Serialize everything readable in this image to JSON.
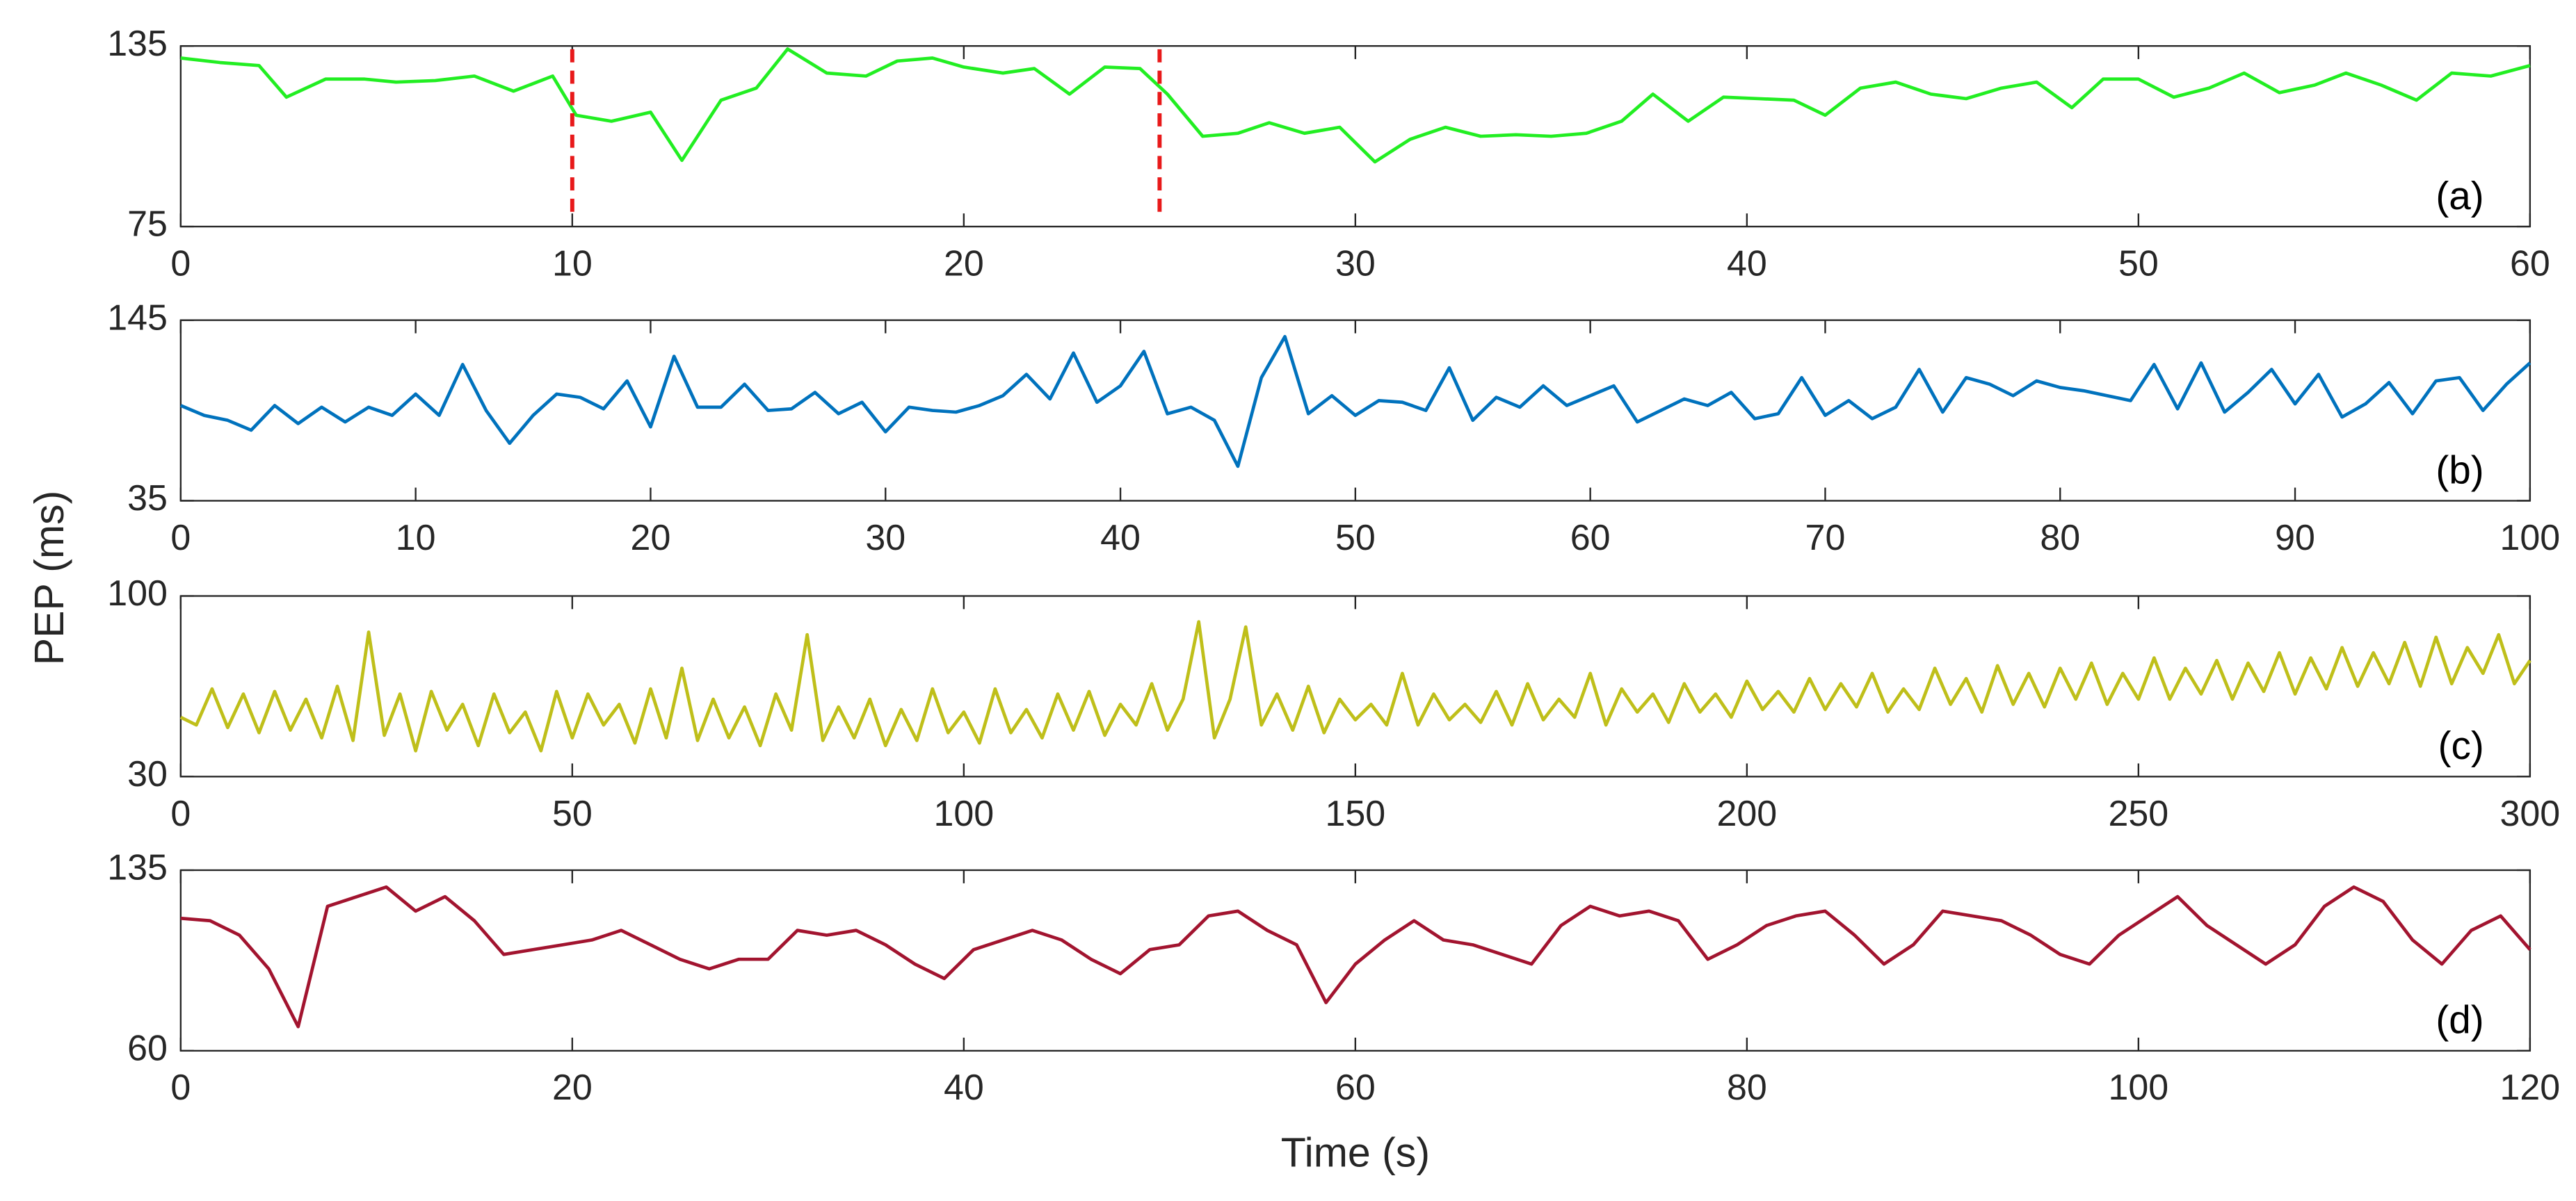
{
  "ylabel": "PEP (ms)",
  "chart_data": [
    {
      "type": "line",
      "annotation": "(a)",
      "color": "#22ee22",
      "vlines": [
        10,
        25
      ],
      "vline_color": "#e8191a",
      "xlim": [
        0,
        60
      ],
      "xticks": [
        0,
        10,
        20,
        30,
        40,
        50,
        60
      ],
      "ylim": [
        75,
        135
      ],
      "yticks": [
        75,
        135
      ],
      "x": [
        0,
        1,
        2,
        2.7,
        3.7,
        4.7,
        5.5,
        6.5,
        7.5,
        8.5,
        9.5,
        10.1,
        11,
        12,
        12.8,
        13.8,
        14.7,
        15.5,
        16.5,
        17.5,
        18.3,
        19.2,
        20,
        21,
        21.8,
        22.7,
        23.6,
        24.5,
        25.2,
        26.1,
        27,
        27.8,
        28.7,
        29.6,
        30.5,
        31.4,
        32.3,
        33.2,
        34.1,
        35,
        35.9,
        36.8,
        37.6,
        38.5,
        39.4,
        40.3,
        41.2,
        42,
        42.9,
        43.8,
        44.7,
        45.6,
        46.5,
        47.4,
        48.3,
        49.1,
        50,
        50.9,
        51.8,
        52.7,
        53.6,
        54.5,
        55.3,
        56.2,
        57.1,
        58,
        59,
        60
      ],
      "values": [
        131,
        129.5,
        128.5,
        118,
        124,
        124,
        123,
        123.5,
        125,
        120,
        125,
        112,
        110,
        113,
        97,
        117,
        121,
        134,
        126,
        125,
        130,
        131,
        128,
        126,
        127.5,
        119,
        128,
        127.5,
        119,
        105,
        106,
        109.5,
        106,
        108,
        96.5,
        104,
        108,
        105,
        105.5,
        105,
        106,
        110,
        119,
        110,
        118,
        117.5,
        117,
        112,
        121,
        123,
        119,
        117.5,
        121,
        123,
        114.5,
        124,
        124,
        118,
        121,
        126,
        119.5,
        122,
        126,
        122,
        117,
        126,
        125,
        128.5
      ]
    },
    {
      "type": "line",
      "annotation": "(b)",
      "color": "#0072bd",
      "xlim": [
        0,
        100
      ],
      "xticks": [
        0,
        10,
        20,
        30,
        40,
        50,
        60,
        70,
        80,
        90,
        100
      ],
      "ylim": [
        35,
        145
      ],
      "yticks": [
        35,
        145
      ],
      "x": [
        0,
        1,
        2,
        3,
        4,
        5,
        6,
        7,
        8,
        9,
        10,
        11,
        12,
        13,
        14,
        15,
        16,
        17,
        18,
        19,
        20,
        21,
        22,
        23,
        24,
        25,
        26,
        27,
        28,
        29,
        30,
        31,
        32,
        33,
        34,
        35,
        36,
        37,
        38,
        39,
        40,
        41,
        42,
        43,
        44,
        45,
        46,
        47,
        48,
        49,
        50,
        51,
        52,
        53,
        54,
        55,
        56,
        57,
        58,
        59,
        60,
        61,
        62,
        63,
        64,
        65,
        66,
        67,
        68,
        69,
        70,
        71,
        72,
        73,
        74,
        75,
        76,
        77,
        78,
        79,
        80,
        81,
        82,
        83,
        84,
        85,
        86,
        87,
        88,
        89,
        90,
        91,
        92,
        93,
        94,
        95,
        96,
        97,
        98,
        99,
        100
      ],
      "values": [
        93,
        87,
        84,
        78,
        93,
        82,
        92,
        83,
        92,
        87,
        100,
        87,
        118,
        90,
        70,
        87,
        100,
        98,
        91,
        108,
        80,
        123,
        92,
        92,
        106,
        90,
        91,
        101,
        88,
        95,
        77,
        92,
        90,
        89,
        93,
        99,
        112,
        97,
        125,
        95,
        105,
        126,
        88,
        92,
        84,
        56,
        110,
        135,
        88,
        99,
        87,
        96,
        95,
        90,
        116,
        84,
        98,
        92,
        105,
        93,
        99,
        105,
        83,
        90,
        97,
        93,
        101,
        85,
        88,
        110,
        87,
        96,
        85,
        92,
        115,
        89,
        110,
        106,
        99,
        108,
        104,
        102,
        99,
        96,
        118,
        91,
        119,
        89,
        101,
        115,
        94,
        112,
        86,
        94,
        107,
        88,
        108,
        110,
        90,
        106,
        119
      ]
    },
    {
      "type": "line",
      "annotation": "(c)",
      "color": "#bfbf1a",
      "xlim": [
        0,
        300
      ],
      "xticks": [
        0,
        50,
        100,
        150,
        200,
        250,
        300
      ],
      "ylim": [
        30,
        100
      ],
      "yticks": [
        30,
        100
      ],
      "x": [
        0,
        2,
        4,
        6,
        8,
        10,
        12,
        14,
        16,
        18,
        20,
        22,
        24,
        26,
        28,
        30,
        32,
        34,
        36,
        38,
        40,
        42,
        44,
        46,
        48,
        50,
        52,
        54,
        56,
        58,
        60,
        62,
        64,
        66,
        68,
        70,
        72,
        74,
        76,
        78,
        80,
        82,
        84,
        86,
        88,
        90,
        92,
        94,
        96,
        98,
        100,
        102,
        104,
        106,
        108,
        110,
        112,
        114,
        116,
        118,
        120,
        122,
        124,
        126,
        128,
        130,
        132,
        134,
        136,
        138,
        140,
        142,
        144,
        146,
        148,
        150,
        152,
        154,
        156,
        158,
        160,
        162,
        164,
        166,
        168,
        170,
        172,
        174,
        176,
        178,
        180,
        182,
        184,
        186,
        188,
        190,
        192,
        194,
        196,
        198,
        200,
        202,
        204,
        206,
        208,
        210,
        212,
        214,
        216,
        218,
        220,
        222,
        224,
        226,
        228,
        230,
        232,
        234,
        236,
        238,
        240,
        242,
        244,
        246,
        248,
        250,
        252,
        254,
        256,
        258,
        260,
        262,
        264,
        266,
        268,
        270,
        272,
        274,
        276,
        278,
        280,
        282,
        284,
        286,
        288,
        290,
        292,
        294,
        296,
        298,
        300
      ],
      "values": [
        53,
        50,
        64,
        49,
        62,
        47,
        63,
        48,
        60,
        45,
        65,
        44,
        86,
        46,
        62,
        40,
        63,
        48,
        58,
        42,
        62,
        47,
        55,
        40,
        63,
        45,
        62,
        50,
        58,
        43,
        64,
        45,
        72,
        44,
        60,
        45,
        57,
        42,
        62,
        48,
        85,
        44,
        57,
        45,
        60,
        42,
        56,
        44,
        64,
        47,
        55,
        43,
        64,
        47,
        56,
        45,
        62,
        48,
        63,
        46,
        58,
        50,
        66,
        48,
        60,
        90,
        45,
        60,
        88,
        50,
        62,
        48,
        65,
        47,
        60,
        52,
        58,
        50,
        70,
        50,
        62,
        52,
        58,
        51,
        63,
        50,
        66,
        52,
        60,
        53,
        70,
        50,
        64,
        55,
        62,
        51,
        66,
        55,
        62,
        53,
        67,
        56,
        63,
        55,
        68,
        56,
        66,
        57,
        70,
        55,
        64,
        56,
        72,
        58,
        68,
        55,
        73,
        58,
        70,
        57,
        72,
        60,
        74,
        58,
        70,
        60,
        76,
        60,
        72,
        62,
        75,
        60,
        74,
        63,
        78,
        62,
        76,
        64,
        80,
        65,
        78,
        66,
        82,
        65,
        84,
        66,
        80,
        70,
        85,
        66,
        75
      ]
    },
    {
      "type": "line",
      "annotation": "(d)",
      "color": "#a2142f",
      "xlabel": "Time (s)",
      "xlim": [
        0,
        120
      ],
      "xticks": [
        0,
        20,
        40,
        60,
        80,
        100,
        120
      ],
      "ylim": [
        60,
        135
      ],
      "yticks": [
        60,
        135
      ],
      "x": [
        0,
        1.5,
        3,
        4.5,
        6,
        7.5,
        9,
        10.5,
        12,
        13.5,
        15,
        16.5,
        18,
        19.5,
        21,
        22.5,
        24,
        25.5,
        27,
        28.5,
        30,
        31.5,
        33,
        34.5,
        36,
        37.5,
        39,
        40.5,
        42,
        43.5,
        45,
        46.5,
        48,
        49.5,
        51,
        52.5,
        54,
        55.5,
        57,
        58.5,
        60,
        61.5,
        63,
        64.5,
        66,
        67.5,
        69,
        70.5,
        72,
        73.5,
        75,
        76.5,
        78,
        79.5,
        81,
        82.5,
        84,
        85.5,
        87,
        88.5,
        90,
        91.5,
        93,
        94.5,
        96,
        97.5,
        99,
        100.5,
        102,
        103.5,
        105,
        106.5,
        108,
        109.5,
        111,
        112.5,
        114,
        115.5,
        117,
        118.5,
        120
      ],
      "values": [
        115,
        114,
        108,
        94,
        70,
        120,
        124,
        128,
        118,
        124,
        114,
        100,
        102,
        104,
        106,
        110,
        104,
        98,
        94,
        98,
        98,
        110,
        108,
        110,
        104,
        96,
        90,
        102,
        106,
        110,
        106,
        98,
        92,
        102,
        104,
        116,
        118,
        110,
        104,
        80,
        96,
        106,
        114,
        106,
        104,
        100,
        96,
        112,
        120,
        116,
        118,
        114,
        98,
        104,
        112,
        116,
        118,
        108,
        96,
        104,
        118,
        116,
        114,
        108,
        100,
        96,
        108,
        116,
        124,
        112,
        104,
        96,
        104,
        120,
        128,
        122,
        106,
        96,
        110,
        116,
        102
      ]
    }
  ]
}
